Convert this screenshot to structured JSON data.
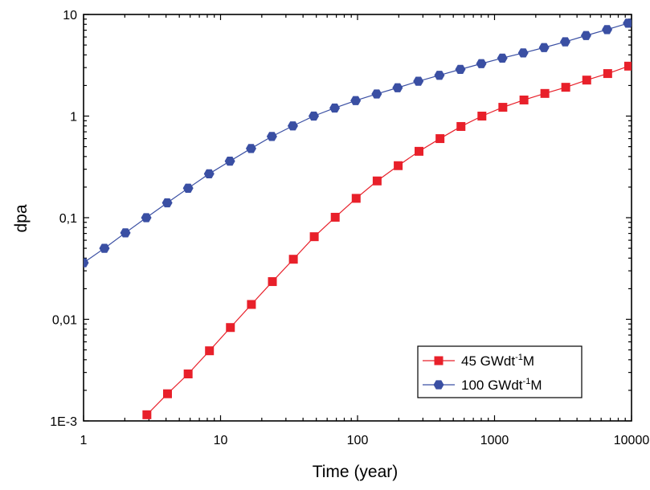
{
  "chart_data": {
    "type": "line",
    "title": "",
    "xlabel": "Time (year)",
    "ylabel": "dpa",
    "xscale": "log",
    "yscale": "log",
    "xlim": [
      1,
      10000
    ],
    "ylim": [
      0.001,
      10
    ],
    "grid": false,
    "legend_position": "bottom-right",
    "x_tick_labels": [
      {
        "value": 1,
        "label": "1"
      },
      {
        "value": 10,
        "label": "10"
      },
      {
        "value": 100,
        "label": "100"
      },
      {
        "value": 1000,
        "label": "1000"
      },
      {
        "value": 10000,
        "label": "10000"
      }
    ],
    "y_tick_labels": [
      {
        "value": 0.001,
        "label": "1E-3"
      },
      {
        "value": 0.01,
        "label": "0,01"
      },
      {
        "value": 0.1,
        "label": "0,1"
      },
      {
        "value": 1,
        "label": "1"
      },
      {
        "value": 10,
        "label": "10"
      }
    ],
    "series": [
      {
        "name_main": "45 GWdt",
        "name_sup": "-1",
        "name_tail": "M",
        "color": "#e8202a",
        "marker": "square",
        "points": [
          [
            2.9,
            0.00115
          ],
          [
            4.1,
            0.00185
          ],
          [
            5.8,
            0.0029
          ],
          [
            8.3,
            0.0049
          ],
          [
            11.8,
            0.0083
          ],
          [
            16.8,
            0.014
          ],
          [
            23.9,
            0.0235
          ],
          [
            34,
            0.039
          ],
          [
            48.3,
            0.065
          ],
          [
            68.7,
            0.101
          ],
          [
            97.7,
            0.155
          ],
          [
            139,
            0.23
          ],
          [
            198,
            0.325
          ],
          [
            281,
            0.45
          ],
          [
            400,
            0.6
          ],
          [
            569,
            0.79
          ],
          [
            809,
            1.0
          ],
          [
            1150,
            1.22
          ],
          [
            1640,
            1.44
          ],
          [
            2330,
            1.67
          ],
          [
            3310,
            1.92
          ],
          [
            4710,
            2.26
          ],
          [
            6700,
            2.62
          ],
          [
            9530,
            3.1
          ]
        ]
      },
      {
        "name_main": "100 GWdt",
        "name_sup": "-1",
        "name_tail": "M",
        "color": "#3a4fa3",
        "marker": "hexagon",
        "points": [
          [
            1,
            0.036
          ],
          [
            1.42,
            0.05
          ],
          [
            2.02,
            0.071
          ],
          [
            2.87,
            0.1
          ],
          [
            4.08,
            0.14
          ],
          [
            5.8,
            0.195
          ],
          [
            8.25,
            0.27
          ],
          [
            11.7,
            0.36
          ],
          [
            16.7,
            0.48
          ],
          [
            23.7,
            0.63
          ],
          [
            33.7,
            0.8
          ],
          [
            47.9,
            1.0
          ],
          [
            68.1,
            1.2
          ],
          [
            96.9,
            1.42
          ],
          [
            138,
            1.65
          ],
          [
            196,
            1.9
          ],
          [
            278,
            2.2
          ],
          [
            396,
            2.52
          ],
          [
            563,
            2.88
          ],
          [
            801,
            3.28
          ],
          [
            1140,
            3.72
          ],
          [
            1620,
            4.18
          ],
          [
            2300,
            4.72
          ],
          [
            3280,
            5.38
          ],
          [
            4660,
            6.2
          ],
          [
            6630,
            7.1
          ],
          [
            9430,
            8.2
          ]
        ]
      }
    ]
  }
}
